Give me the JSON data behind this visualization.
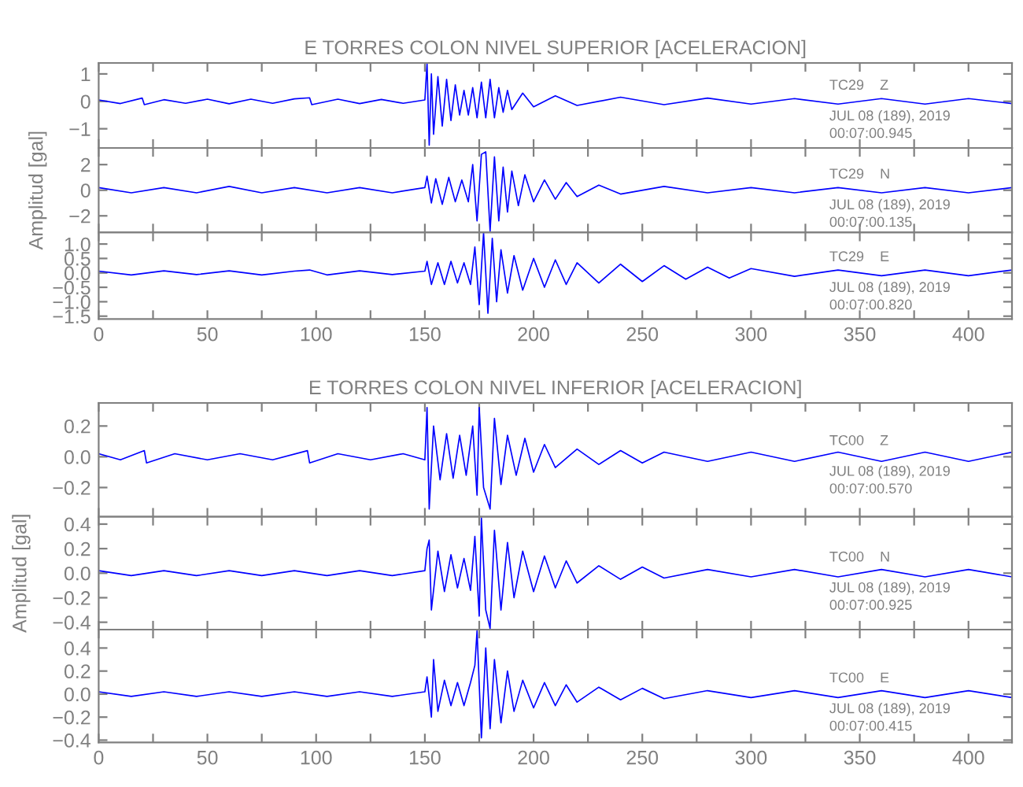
{
  "chart_data": [
    {
      "type": "line",
      "title": "E TORRES COLON NIVEL SUPERIOR [ACELERACION]",
      "tick_labels": "y",
      "xlim": [
        0,
        420
      ],
      "ylim": [
        -1.7,
        1.4
      ],
      "yticks": [
        {
          "value": -1,
          "label": "−1"
        },
        0,
        1
      ],
      "xticks": [
        0,
        {
          "value": 25,
          "label": null
        },
        50,
        {
          "value": 75,
          "label": null
        },
        100,
        {
          "value": 125,
          "label": null
        },
        150,
        {
          "value": 175,
          "label": null
        },
        200,
        {
          "value": 225,
          "label": null
        },
        250,
        {
          "value": 275,
          "label": null
        },
        300,
        {
          "value": 325,
          "label": null
        },
        350,
        {
          "value": 375,
          "label": null
        },
        400
      ],
      "annotations": [
        "TC29    Z",
        "JUL 08 (189), 2019",
        "00:07:00.945"
      ],
      "series": [
        {
          "color": "#0000ff",
          "x": [
            0,
            10,
            20,
            21,
            30,
            40,
            50,
            60,
            70,
            80,
            90,
            97,
            98,
            110,
            120,
            130,
            140,
            150,
            151,
            152,
            153,
            154,
            156,
            158,
            160,
            162,
            164,
            166,
            168,
            170,
            172,
            174,
            176,
            178,
            180,
            182,
            184,
            186,
            188,
            190,
            195,
            200,
            210,
            220,
            240,
            260,
            280,
            300,
            320,
            340,
            360,
            380,
            400,
            420
          ],
          "values": [
            0.05,
            -0.08,
            0.12,
            -0.12,
            0.06,
            -0.07,
            0.08,
            -0.09,
            0.08,
            -0.07,
            0.09,
            0.13,
            -0.12,
            0.08,
            -0.08,
            0.07,
            -0.07,
            0.05,
            1.4,
            -1.6,
            1.0,
            -1.2,
            0.9,
            -0.9,
            0.8,
            -0.7,
            0.6,
            -0.5,
            0.4,
            -0.5,
            0.5,
            -0.6,
            0.7,
            -0.6,
            0.8,
            -0.6,
            0.5,
            -0.4,
            0.4,
            -0.3,
            0.3,
            -0.2,
            0.2,
            -0.15,
            0.15,
            -0.12,
            0.12,
            -0.1,
            0.1,
            -0.1,
            0.1,
            -0.1,
            0.1,
            -0.08
          ]
        }
      ]
    },
    {
      "type": "line",
      "ylabel": "Amplitud [gal]",
      "tick_labels": "y",
      "xlim": [
        0,
        420
      ],
      "ylim": [
        -3.3,
        3.3
      ],
      "yticks": [
        {
          "value": -2,
          "label": "−2"
        },
        0,
        2
      ],
      "xticks": [
        0,
        {
          "value": 25,
          "label": null
        },
        50,
        {
          "value": 75,
          "label": null
        },
        100,
        {
          "value": 125,
          "label": null
        },
        150,
        {
          "value": 175,
          "label": null
        },
        200,
        {
          "value": 225,
          "label": null
        },
        250,
        {
          "value": 275,
          "label": null
        },
        300,
        {
          "value": 325,
          "label": null
        },
        350,
        {
          "value": 375,
          "label": null
        },
        400
      ],
      "annotations": [
        "TC29    N",
        "JUL 08 (189), 2019",
        "00:07:00.135"
      ],
      "series": [
        {
          "color": "#0000ff",
          "x": [
            0,
            15,
            30,
            45,
            60,
            75,
            90,
            105,
            120,
            135,
            150,
            151,
            153,
            155,
            158,
            161,
            164,
            167,
            170,
            172,
            174,
            176,
            178,
            180,
            182,
            184,
            186,
            188,
            190,
            193,
            196,
            200,
            205,
            210,
            215,
            220,
            230,
            240,
            260,
            280,
            300,
            320,
            340,
            360,
            380,
            400,
            420
          ],
          "values": [
            0.2,
            -0.2,
            0.2,
            -0.2,
            0.3,
            -0.2,
            0.2,
            -0.2,
            0.2,
            -0.2,
            0.2,
            1.1,
            -1.0,
            0.9,
            -1.1,
            1.0,
            -0.9,
            0.8,
            -0.9,
            2.0,
            -2.4,
            2.8,
            3.0,
            -3.2,
            2.6,
            -2.4,
            1.8,
            -1.7,
            1.5,
            -1.2,
            1.2,
            -0.9,
            0.8,
            -0.7,
            0.6,
            -0.5,
            0.4,
            -0.3,
            0.3,
            -0.2,
            0.2,
            -0.2,
            0.2,
            -0.2,
            0.2,
            -0.2,
            0.2
          ]
        }
      ]
    },
    {
      "type": "line",
      "xlim": [
        0,
        420
      ],
      "ylim": [
        -1.6,
        1.4
      ],
      "yticks": [
        {
          "value": -1.5,
          "label": "−1.5"
        },
        {
          "value": -1.0,
          "label": "−1.0"
        },
        {
          "value": -0.5,
          "label": "−0.5"
        },
        {
          "value": 0.0,
          "label": "0.0"
        },
        {
          "value": 0.5,
          "label": "0.5"
        },
        {
          "value": 1.0,
          "label": "1.0"
        }
      ],
      "xticks": [
        0,
        {
          "value": 25,
          "label": null
        },
        50,
        {
          "value": 75,
          "label": null
        },
        100,
        {
          "value": 125,
          "label": null
        },
        150,
        {
          "value": 175,
          "label": null
        },
        200,
        {
          "value": 225,
          "label": null
        },
        250,
        {
          "value": 275,
          "label": null
        },
        300,
        {
          "value": 325,
          "label": null
        },
        350,
        {
          "value": 375,
          "label": null
        },
        400
      ],
      "annotations": [
        "TC29    E",
        "JUL 08 (189), 2019",
        "00:07:00.820"
      ],
      "series": [
        {
          "color": "#0000ff",
          "x": [
            0,
            15,
            30,
            45,
            60,
            75,
            90,
            97,
            105,
            120,
            135,
            150,
            151,
            153,
            156,
            159,
            162,
            165,
            168,
            171,
            173,
            175,
            177,
            179,
            181,
            183,
            185,
            188,
            191,
            195,
            200,
            205,
            210,
            215,
            220,
            230,
            240,
            250,
            260,
            270,
            280,
            290,
            300,
            320,
            340,
            360,
            380,
            400,
            420
          ],
          "values": [
            0.06,
            -0.07,
            0.07,
            -0.06,
            0.07,
            -0.07,
            0.06,
            0.1,
            -0.07,
            0.07,
            -0.06,
            0.06,
            0.4,
            -0.4,
            0.35,
            -0.4,
            0.4,
            -0.35,
            0.35,
            -0.4,
            0.9,
            -1.1,
            1.4,
            -1.4,
            1.2,
            -1.0,
            0.8,
            -0.7,
            0.6,
            -0.6,
            0.5,
            -0.5,
            0.45,
            -0.4,
            0.35,
            -0.35,
            0.3,
            -0.3,
            0.25,
            -0.22,
            0.2,
            -0.18,
            0.15,
            -0.12,
            0.1,
            -0.1,
            0.1,
            -0.1,
            0.1
          ]
        }
      ]
    },
    {
      "type": "line",
      "title": "E TORRES COLON NIVEL INFERIOR [ACELERACION]",
      "tick_labels": "y",
      "xlim": [
        0,
        420
      ],
      "ylim": [
        -0.39,
        0.35
      ],
      "yticks": [
        {
          "value": -0.2,
          "label": "−0.2"
        },
        {
          "value": 0.0,
          "label": "0.0"
        },
        {
          "value": 0.2,
          "label": "0.2"
        }
      ],
      "xticks": [
        0,
        {
          "value": 25,
          "label": null
        },
        50,
        {
          "value": 75,
          "label": null
        },
        100,
        {
          "value": 125,
          "label": null
        },
        150,
        {
          "value": 175,
          "label": null
        },
        200,
        {
          "value": 225,
          "label": null
        },
        250,
        {
          "value": 275,
          "label": null
        },
        300,
        {
          "value": 325,
          "label": null
        },
        350,
        {
          "value": 375,
          "label": null
        },
        400
      ],
      "annotations": [
        "TC00    Z",
        "JUL 08 (189), 2019",
        "00:07:00.570"
      ],
      "series": [
        {
          "color": "#0000ff",
          "x": [
            0,
            10,
            21,
            22,
            35,
            50,
            65,
            80,
            96,
            97,
            110,
            125,
            140,
            150,
            151,
            152,
            154,
            157,
            160,
            163,
            166,
            169,
            172,
            174,
            175,
            177,
            180,
            182,
            185,
            188,
            192,
            196,
            200,
            205,
            210,
            220,
            230,
            240,
            250,
            260,
            280,
            300,
            320,
            340,
            360,
            380,
            400,
            420
          ],
          "values": [
            0.02,
            -0.02,
            0.04,
            -0.04,
            0.02,
            -0.02,
            0.02,
            -0.02,
            0.04,
            -0.04,
            0.02,
            -0.02,
            0.02,
            -0.02,
            0.32,
            -0.34,
            0.2,
            -0.15,
            0.15,
            -0.14,
            0.14,
            -0.12,
            0.2,
            -0.25,
            0.32,
            -0.2,
            -0.34,
            0.25,
            -0.18,
            0.14,
            -0.12,
            0.12,
            -0.1,
            0.08,
            -0.07,
            0.05,
            -0.05,
            0.04,
            -0.04,
            0.03,
            -0.03,
            0.03,
            -0.03,
            0.03,
            -0.03,
            0.03,
            -0.03,
            0.03
          ]
        }
      ]
    },
    {
      "type": "line",
      "ylabel": "Amplitud [gal]",
      "tick_labels": "y",
      "xlim": [
        0,
        420
      ],
      "ylim": [
        -0.46,
        0.46
      ],
      "yticks": [
        {
          "value": -0.4,
          "label": "−0.4"
        },
        {
          "value": -0.2,
          "label": "−0.2"
        },
        {
          "value": 0.0,
          "label": "0.0"
        },
        {
          "value": 0.2,
          "label": "0.2"
        },
        {
          "value": 0.4,
          "label": "0.4"
        }
      ],
      "xticks": [
        0,
        {
          "value": 25,
          "label": null
        },
        50,
        {
          "value": 75,
          "label": null
        },
        100,
        {
          "value": 125,
          "label": null
        },
        150,
        {
          "value": 175,
          "label": null
        },
        200,
        {
          "value": 225,
          "label": null
        },
        250,
        {
          "value": 275,
          "label": null
        },
        300,
        {
          "value": 325,
          "label": null
        },
        350,
        {
          "value": 375,
          "label": null
        },
        400
      ],
      "annotations": [
        "TC00    N",
        "JUL 08 (189), 2019",
        "00:07:00.925"
      ],
      "series": [
        {
          "color": "#0000ff",
          "x": [
            0,
            15,
            30,
            45,
            60,
            75,
            90,
            105,
            120,
            135,
            150,
            151,
            152,
            153,
            156,
            159,
            162,
            165,
            168,
            171,
            173,
            175,
            176,
            178,
            180,
            182,
            185,
            188,
            191,
            195,
            200,
            205,
            210,
            215,
            220,
            230,
            240,
            250,
            260,
            280,
            300,
            320,
            340,
            360,
            380,
            400,
            420
          ],
          "values": [
            0.02,
            -0.02,
            0.02,
            -0.02,
            0.02,
            -0.02,
            0.02,
            -0.02,
            0.02,
            -0.02,
            0.02,
            0.2,
            0.27,
            -0.3,
            0.18,
            -0.15,
            0.15,
            -0.12,
            0.12,
            -0.14,
            0.3,
            -0.35,
            0.45,
            -0.3,
            -0.45,
            0.35,
            -0.3,
            0.25,
            -0.2,
            0.18,
            -0.15,
            0.14,
            -0.12,
            0.1,
            -0.08,
            0.06,
            -0.05,
            0.05,
            -0.04,
            0.03,
            -0.03,
            0.03,
            -0.03,
            0.03,
            -0.03,
            0.03,
            -0.03
          ]
        }
      ]
    },
    {
      "type": "line",
      "xlim": [
        0,
        420
      ],
      "ylim": [
        -0.42,
        0.56
      ],
      "yticks": [
        {
          "value": -0.4,
          "label": "−0.4"
        },
        {
          "value": -0.2,
          "label": "−0.2"
        },
        {
          "value": 0.0,
          "label": "0.0"
        },
        {
          "value": 0.2,
          "label": "0.2"
        },
        {
          "value": 0.4,
          "label": "0.4"
        }
      ],
      "xticks": [
        0,
        {
          "value": 25,
          "label": null
        },
        50,
        {
          "value": 75,
          "label": null
        },
        100,
        {
          "value": 125,
          "label": null
        },
        150,
        {
          "value": 175,
          "label": null
        },
        200,
        {
          "value": 225,
          "label": null
        },
        250,
        {
          "value": 275,
          "label": null
        },
        300,
        {
          "value": 325,
          "label": null
        },
        350,
        {
          "value": 375,
          "label": null
        },
        400
      ],
      "annotations": [
        "TC00    E",
        "JUL 08 (189), 2019",
        "00:07:00.415"
      ],
      "series": [
        {
          "color": "#0000ff",
          "x": [
            0,
            15,
            30,
            45,
            60,
            75,
            90,
            105,
            120,
            135,
            150,
            151,
            153,
            154,
            156,
            159,
            162,
            165,
            168,
            171,
            173,
            174,
            176,
            178,
            180,
            182,
            185,
            188,
            191,
            195,
            200,
            205,
            210,
            215,
            220,
            230,
            240,
            250,
            260,
            280,
            300,
            320,
            340,
            360,
            380,
            400,
            420
          ],
          "values": [
            0.02,
            -0.02,
            0.02,
            -0.02,
            0.02,
            -0.02,
            0.02,
            -0.02,
            0.02,
            -0.02,
            0.02,
            0.15,
            -0.2,
            0.3,
            -0.15,
            0.12,
            -0.1,
            0.1,
            -0.1,
            0.1,
            0.25,
            0.55,
            -0.38,
            0.4,
            -0.3,
            0.3,
            -0.25,
            0.2,
            -0.15,
            0.12,
            -0.12,
            0.1,
            -0.1,
            0.08,
            -0.07,
            0.06,
            -0.05,
            0.05,
            -0.04,
            0.03,
            -0.03,
            0.03,
            -0.03,
            0.03,
            -0.03,
            0.03,
            -0.03
          ]
        }
      ]
    }
  ]
}
